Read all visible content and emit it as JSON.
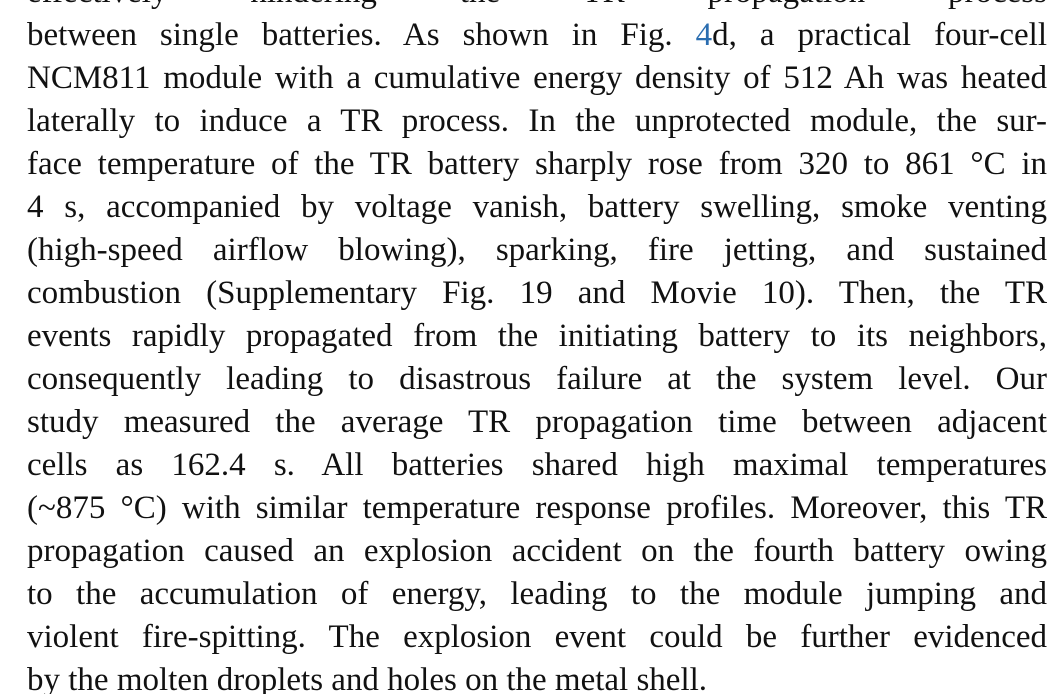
{
  "paragraph": {
    "lines": [
      {
        "text": "effectively hindering the TR propagation process"
      },
      {
        "text": "between single batteries. As shown in Fig. ",
        "link": "4",
        "after": "d, a practical four-cell"
      },
      {
        "text": "NCM811 module with a cumulative energy density of 512 Ah was heated"
      },
      {
        "text": "laterally to induce a TR process. In the unprotected module, the sur-"
      },
      {
        "text": "face temperature of the TR battery sharply rose from 320 to 861 °C in"
      },
      {
        "text": "4 s, accompanied by voltage vanish, battery swelling, smoke venting"
      },
      {
        "text": "(high-speed airflow blowing), sparking, fire jetting, and sustained"
      },
      {
        "text": "combustion (Supplementary Fig. 19 and Movie 10). Then, the TR"
      },
      {
        "text": "events rapidly propagated from the initiating battery to its neighbors,"
      },
      {
        "text": "consequently leading to disastrous failure at the system level. Our"
      },
      {
        "text": "study measured the average TR propagation time between adjacent"
      },
      {
        "text": "cells as 162.4 s. All batteries shared high maximal temperatures"
      },
      {
        "text": "(~875 °C) with similar temperature response profiles. Moreover, this TR"
      },
      {
        "text": "propagation caused an explosion accident on the fourth battery owing"
      },
      {
        "text": "to the accumulation of energy, leading to the module jumping and"
      },
      {
        "text": "violent fire-spitting. The explosion event could be further evidenced"
      },
      {
        "text": "by the molten droplets and holes on the metal shell."
      }
    ]
  },
  "colors": {
    "text": "#111111",
    "link": "#2a6db0",
    "background": "#ffffff"
  }
}
